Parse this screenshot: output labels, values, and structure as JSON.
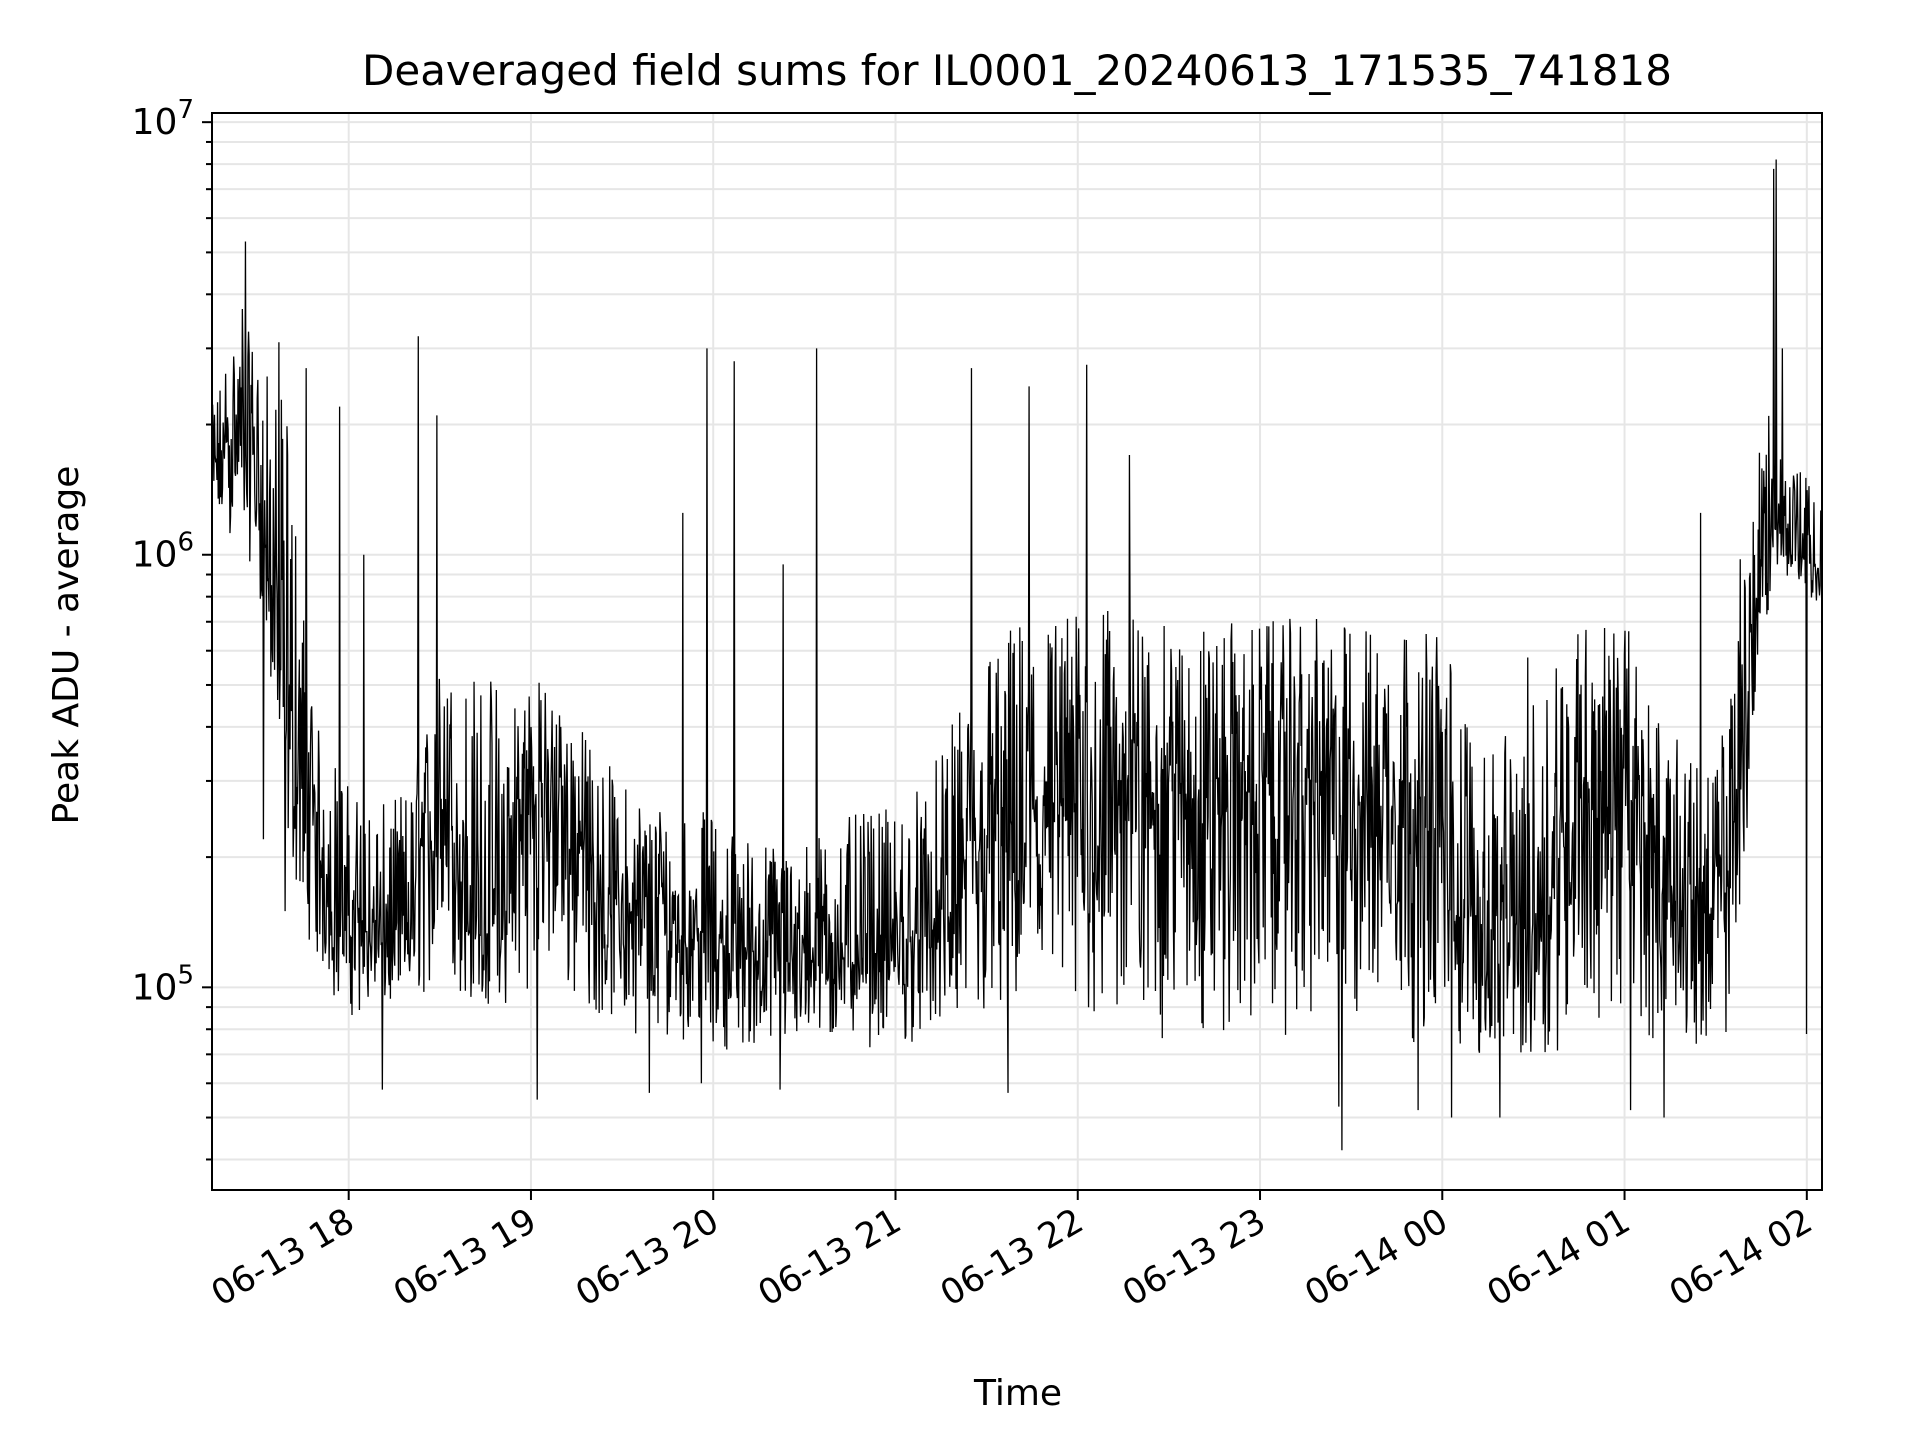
{
  "chart_data": {
    "type": "line",
    "title": "Deaveraged field sums for IL0001_20240613_171535_741818",
    "xlabel": "Time",
    "ylabel": "Peak ADU - average",
    "yscale": "log",
    "ylim": [
      34000,
      10500000
    ],
    "xlim": [
      "2024-06-13 17:15",
      "2024-06-14 02:05"
    ],
    "grid": true,
    "line_color": "#000000",
    "grid_color": "#e6e6e6",
    "x_ticks": [
      {
        "t": "2024-06-13 18:00",
        "label": "06-13 18"
      },
      {
        "t": "2024-06-13 19:00",
        "label": "06-13 19"
      },
      {
        "t": "2024-06-13 20:00",
        "label": "06-13 20"
      },
      {
        "t": "2024-06-13 21:00",
        "label": "06-13 21"
      },
      {
        "t": "2024-06-13 22:00",
        "label": "06-13 22"
      },
      {
        "t": "2024-06-13 23:00",
        "label": "06-13 23"
      },
      {
        "t": "2024-06-14 00:00",
        "label": "06-14 00"
      },
      {
        "t": "2024-06-14 01:00",
        "label": "06-14 01"
      },
      {
        "t": "2024-06-14 02:00",
        "label": "06-14 02"
      }
    ],
    "y_ticks": [
      {
        "value": 100000,
        "base": "10",
        "exp": "5"
      },
      {
        "value": 1000000,
        "base": "10",
        "exp": "6"
      },
      {
        "value": 10000000,
        "base": "10",
        "exp": "7"
      }
    ],
    "series": [
      {
        "x": [
          "2024-06-13 17:15",
          "2024-06-13 17:20",
          "2024-06-13 17:25",
          "2024-06-13 17:30",
          "2024-06-13 17:35",
          "2024-06-13 17:40",
          "2024-06-13 17:45",
          "2024-06-13 17:50",
          "2024-06-13 17:55",
          "2024-06-13 18:00",
          "2024-06-13 18:10",
          "2024-06-13 18:20",
          "2024-06-13 18:30",
          "2024-06-13 18:40",
          "2024-06-13 18:50",
          "2024-06-13 19:00",
          "2024-06-13 19:10",
          "2024-06-13 19:20",
          "2024-06-13 19:30",
          "2024-06-13 19:40",
          "2024-06-13 19:50",
          "2024-06-13 20:00",
          "2024-06-13 20:15",
          "2024-06-13 20:30",
          "2024-06-13 20:45",
          "2024-06-13 21:00",
          "2024-06-13 21:15",
          "2024-06-13 21:30",
          "2024-06-13 21:45",
          "2024-06-13 22:00",
          "2024-06-13 22:15",
          "2024-06-13 22:30",
          "2024-06-13 22:45",
          "2024-06-13 23:00",
          "2024-06-13 23:15",
          "2024-06-13 23:30",
          "2024-06-13 23:45",
          "2024-06-14 00:00",
          "2024-06-14 00:15",
          "2024-06-14 00:30",
          "2024-06-14 00:45",
          "2024-06-14 01:00",
          "2024-06-14 01:10",
          "2024-06-14 01:20",
          "2024-06-14 01:30",
          "2024-06-14 01:35",
          "2024-06-14 01:40",
          "2024-06-14 01:45",
          "2024-06-14 01:50",
          "2024-06-14 01:55",
          "2024-06-14 02:00",
          "2024-06-14 02:05"
        ],
        "y": [
          1500000,
          1800000,
          2000000,
          1500000,
          800000,
          400000,
          280000,
          200000,
          160000,
          140000,
          130000,
          140000,
          300000,
          150000,
          130000,
          300000,
          280000,
          180000,
          150000,
          140000,
          140000,
          130000,
          120000,
          120000,
          125000,
          120000,
          140000,
          200000,
          250000,
          250000,
          300000,
          300000,
          280000,
          280000,
          300000,
          280000,
          300000,
          200000,
          130000,
          140000,
          300000,
          280000,
          200000,
          150000,
          140000,
          200000,
          450000,
          900000,
          1200000,
          1100000,
          1000000,
          900000
        ],
        "y_low": [
          1000000,
          1100000,
          1000000,
          900000,
          400000,
          200000,
          140000,
          110000,
          90000,
          85000,
          85000,
          85000,
          100000,
          90000,
          85000,
          100000,
          90000,
          85000,
          80000,
          75000,
          75000,
          72000,
          70000,
          70000,
          72000,
          72000,
          75000,
          75000,
          75000,
          75000,
          72000,
          70000,
          70000,
          75000,
          75000,
          72000,
          75000,
          70000,
          65000,
          65000,
          75000,
          75000,
          75000,
          75000,
          70000,
          75000,
          200000,
          600000,
          900000,
          850000,
          800000,
          650000
        ],
        "y_high": [
          2200000,
          3000000,
          3500000,
          3000000,
          2500000,
          2200000,
          800000,
          400000,
          350000,
          300000,
          260000,
          300000,
          550000,
          550000,
          550000,
          550000,
          450000,
          380000,
          300000,
          280000,
          270000,
          250000,
          220000,
          220000,
          250000,
          260000,
          350000,
          650000,
          750000,
          750000,
          750000,
          680000,
          700000,
          700000,
          720000,
          700000,
          720000,
          700000,
          320000,
          650000,
          720000,
          720000,
          450000,
          350000,
          320000,
          600000,
          1500000,
          2200000,
          2000000,
          1700000,
          1500000,
          1300000
        ],
        "spikes": [
          {
            "t": "2024-06-13 17:26",
            "y": 5300000
          },
          {
            "t": "2024-06-13 17:25",
            "y": 3700000
          },
          {
            "t": "2024-06-13 17:37",
            "y": 3100000
          },
          {
            "t": "2024-06-13 17:46",
            "y": 2700000
          },
          {
            "t": "2024-06-13 17:57",
            "y": 2200000
          },
          {
            "t": "2024-06-13 18:05",
            "y": 1000000
          },
          {
            "t": "2024-06-13 18:23",
            "y": 3200000
          },
          {
            "t": "2024-06-13 18:29",
            "y": 2100000
          },
          {
            "t": "2024-06-13 19:50",
            "y": 1250000
          },
          {
            "t": "2024-06-13 19:58",
            "y": 3000000
          },
          {
            "t": "2024-06-13 20:07",
            "y": 2800000
          },
          {
            "t": "2024-06-13 20:23",
            "y": 950000
          },
          {
            "t": "2024-06-13 20:34",
            "y": 3000000
          },
          {
            "t": "2024-06-13 21:25",
            "y": 2700000
          },
          {
            "t": "2024-06-13 21:44",
            "y": 2450000
          },
          {
            "t": "2024-06-13 22:03",
            "y": 2750000
          },
          {
            "t": "2024-06-13 22:17",
            "y": 1700000
          },
          {
            "t": "2024-06-14 01:25",
            "y": 1250000
          },
          {
            "t": "2024-06-14 01:49",
            "y": 7800000
          },
          {
            "t": "2024-06-14 01:50",
            "y": 8200000
          },
          {
            "t": "2024-06-14 01:52",
            "y": 3000000
          },
          {
            "t": "2024-06-14 02:00",
            "y": 1800000
          }
        ],
        "dips": [
          {
            "t": "2024-06-13 17:32",
            "y": 220000
          },
          {
            "t": "2024-06-13 17:39",
            "y": 150000
          },
          {
            "t": "2024-06-13 18:11",
            "y": 58000
          },
          {
            "t": "2024-06-13 19:02",
            "y": 55000
          },
          {
            "t": "2024-06-13 19:39",
            "y": 57000
          },
          {
            "t": "2024-06-13 19:56",
            "y": 60000
          },
          {
            "t": "2024-06-13 20:22",
            "y": 58000
          },
          {
            "t": "2024-06-13 21:37",
            "y": 57000
          },
          {
            "t": "2024-06-13 23:52",
            "y": 52000
          },
          {
            "t": "2024-06-13 23:26",
            "y": 53000
          },
          {
            "t": "2024-06-13 23:27",
            "y": 42000
          },
          {
            "t": "2024-06-14 00:03",
            "y": 50000
          },
          {
            "t": "2024-06-14 00:19",
            "y": 50000
          },
          {
            "t": "2024-06-14 01:02",
            "y": 52000
          },
          {
            "t": "2024-06-14 01:13",
            "y": 50000
          },
          {
            "t": "2024-06-14 02:00",
            "y": 78000
          }
        ]
      }
    ]
  }
}
